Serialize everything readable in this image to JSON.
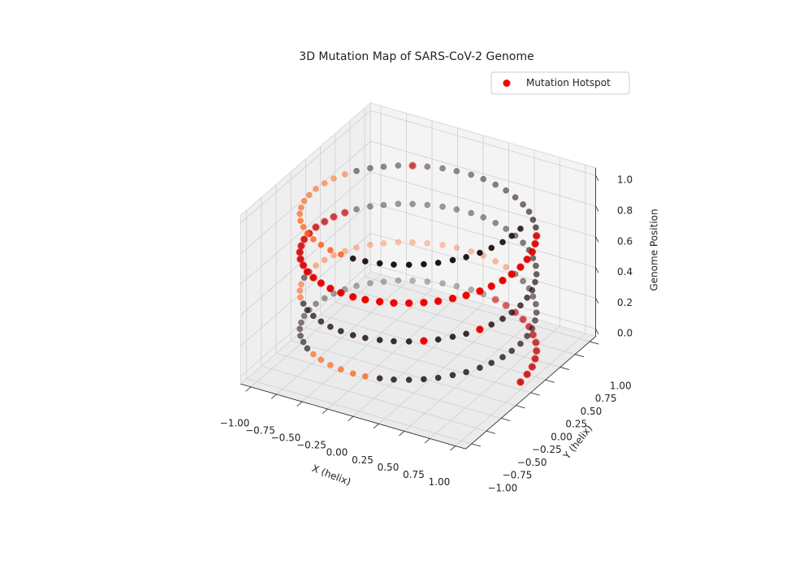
{
  "chart_data": {
    "type": "scatter3d",
    "title": "3D Mutation Map of SARS-CoV-2 Genome",
    "xlabel": "X (helix)",
    "ylabel": "Y (helix)",
    "zlabel": "Genome Position",
    "xlim": [
      -1.1,
      1.1
    ],
    "ylim": [
      -1.1,
      1.1
    ],
    "zlim": [
      -0.05,
      1.05
    ],
    "xticks": [
      {
        "value": -1,
        "label": "−1.00"
      },
      {
        "value": -0.75,
        "label": "−0.75"
      },
      {
        "value": -0.5,
        "label": "−0.50"
      },
      {
        "value": -0.25,
        "label": "−0.25"
      },
      {
        "value": 0,
        "label": "0.00"
      },
      0.25,
      {
        "value": 0.5,
        "label": "0.50"
      },
      0.75,
      {
        "value": 1,
        "label": "1.00"
      }
    ],
    "yticks": [
      {
        "value": -1,
        "label": "−1.00"
      },
      {
        "value": -0.75,
        "label": "−0.75"
      },
      {
        "value": -0.5,
        "label": "−0.50"
      },
      {
        "value": -0.25,
        "label": "−0.25"
      },
      {
        "value": 0,
        "label": "0.00"
      },
      0.25,
      {
        "value": 0.5,
        "label": "0.50"
      },
      0.75,
      {
        "value": 1,
        "label": "1.00"
      }
    ],
    "zticks": [
      {
        "value": 0,
        "label": "0.0"
      },
      0.2,
      0.4,
      0.6,
      0.8,
      {
        "value": 1,
        "label": "1.0"
      }
    ],
    "grid": true,
    "legend": "upper right",
    "series": [
      {
        "x": [
          1,
          0.99,
          0.97,
          0.93,
          0.88,
          0.81,
          0.73,
          0.64,
          0.54,
          0.43,
          0.31,
          0.19,
          0.06,
          -0.06,
          -0.19,
          -0.31,
          -0.43,
          -0.54,
          -0.64,
          -0.73,
          -0.81,
          -0.88,
          -0.93,
          -0.97,
          -0.99,
          -1,
          -0.99,
          -0.97,
          -0.93,
          -0.88,
          -0.81,
          -0.73,
          -0.64,
          -0.54,
          -0.43,
          -0.31,
          -0.19,
          -0.06,
          0.06,
          0.19,
          0.31,
          0.43,
          0.54,
          0.64,
          0.73,
          0.81,
          0.88,
          0.93,
          0.97,
          0.99,
          1,
          0.99,
          0.97,
          0.93,
          0.88,
          0.81,
          0.73,
          0.64,
          0.54,
          0.43,
          0.31,
          0.19,
          0.06,
          -0.06,
          -0.19,
          -0.31,
          -0.43,
          -0.54,
          -0.64,
          -0.73,
          -0.81,
          -0.88,
          -0.93,
          -0.97,
          -0.99,
          -1,
          -0.99,
          -0.97,
          -0.93,
          -0.88,
          -0.81,
          -0.73,
          -0.64,
          -0.54,
          -0.43,
          -0.31,
          -0.19,
          -0.06,
          0.06,
          0.19,
          0.31,
          0.43,
          0.54,
          0.64,
          0.73,
          0.81,
          0.88,
          0.93,
          0.97,
          0.99,
          1,
          0.99,
          0.97,
          0.93,
          0.88,
          0.81,
          0.73,
          0.64,
          0.54,
          0.43,
          0.31,
          0.19,
          0.06,
          -0.06,
          -0.19,
          -0.31,
          -0.43,
          -0.54,
          -0.64,
          -0.73,
          -0.81,
          -0.88,
          -0.93,
          -0.97,
          -0.99,
          -1,
          -0.99,
          -0.97,
          -0.93,
          -0.88,
          -0.81,
          -0.73,
          -0.64,
          -0.54,
          -0.43,
          -0.31,
          -0.19,
          -0.06,
          0.06,
          0.19,
          0.31,
          0.43,
          0.54,
          0.64,
          0.73,
          0.81,
          0.88,
          0.93,
          0.97,
          0.99,
          1,
          0.99,
          0.97,
          0.93,
          0.88,
          0.81,
          0.73,
          0.64,
          0.54,
          0.43,
          0.31,
          0.19,
          0.06,
          -0.06,
          -0.19,
          -0.31,
          -0.43,
          -0.54,
          -0.64,
          -0.73,
          -0.81,
          -0.88,
          -0.93,
          -0.97,
          -0.99,
          -1,
          -0.99,
          -0.97,
          -0.93,
          -0.88,
          -0.81,
          -0.73,
          -0.64,
          -0.54,
          -0.43,
          -0.31,
          -0.19,
          -0.06,
          0.06,
          0.19,
          0.31,
          0.43,
          0.54,
          0.64,
          0.73,
          0.81,
          0.88,
          0.93,
          0.97,
          0.99,
          1
        ],
        "y": [
          0,
          0.13,
          0.25,
          0.37,
          0.48,
          0.59,
          0.68,
          0.77,
          0.84,
          0.9,
          0.95,
          0.98,
          1,
          1,
          0.98,
          0.95,
          0.9,
          0.84,
          0.77,
          0.68,
          0.59,
          0.48,
          0.37,
          0.25,
          0.13,
          0,
          -0.13,
          -0.25,
          -0.37,
          -0.48,
          -0.59,
          -0.68,
          -0.77,
          -0.84,
          -0.9,
          -0.95,
          -0.98,
          -1,
          -1,
          -0.98,
          -0.95,
          -0.9,
          -0.84,
          -0.77,
          -0.68,
          -0.59,
          -0.48,
          -0.37,
          -0.25,
          -0.13,
          0,
          0.13,
          0.25,
          0.37,
          0.48,
          0.59,
          0.68,
          0.77,
          0.84,
          0.9,
          0.95,
          0.98,
          1,
          1,
          0.98,
          0.95,
          0.9,
          0.84,
          0.77,
          0.68,
          0.59,
          0.48,
          0.37,
          0.25,
          0.13,
          0,
          -0.13,
          -0.25,
          -0.37,
          -0.48,
          -0.59,
          -0.68,
          -0.77,
          -0.84,
          -0.9,
          -0.95,
          -0.98,
          -1,
          -1,
          -0.98,
          -0.95,
          -0.9,
          -0.84,
          -0.77,
          -0.68,
          -0.59,
          -0.48,
          -0.37,
          -0.25,
          -0.13,
          0,
          0.13,
          0.25,
          0.37,
          0.48,
          0.59,
          0.68,
          0.77,
          0.84,
          0.9,
          0.95,
          0.98,
          1,
          1,
          0.98,
          0.95,
          0.9,
          0.84,
          0.77,
          0.68,
          0.59,
          0.48,
          0.37,
          0.25,
          0.13,
          0,
          -0.13,
          -0.25,
          -0.37,
          -0.48,
          -0.59,
          -0.68,
          -0.77,
          -0.84,
          -0.9,
          -0.95,
          -0.98,
          -1,
          -1,
          -0.98,
          -0.95,
          -0.9,
          -0.84,
          -0.77,
          -0.68,
          -0.59,
          -0.48,
          -0.37,
          -0.25,
          -0.13,
          0,
          0.13,
          0.25,
          0.37,
          0.48,
          0.59,
          0.68,
          0.77,
          0.84,
          0.9,
          0.95,
          0.98,
          1,
          1,
          0.98,
          0.95,
          0.9,
          0.84,
          0.77,
          0.68,
          0.59,
          0.48,
          0.37,
          0.25,
          0.13,
          0,
          -0.13,
          -0.25,
          -0.37,
          -0.48,
          -0.59,
          -0.68,
          -0.77,
          -0.84,
          -0.9,
          -0.95,
          -0.98,
          -1,
          -1,
          -0.98,
          -0.95,
          -0.9,
          -0.84,
          -0.77,
          -0.68,
          -0.59,
          -0.48,
          -0.37,
          -0.25,
          -0.13,
          0
        ],
        "z": [
          0,
          0.005,
          0.01,
          0.015,
          0.02,
          0.025,
          0.03,
          0.035,
          0.04,
          0.045,
          0.05,
          0.055,
          0.06,
          0.065,
          0.07,
          0.075,
          0.08,
          0.085,
          0.09,
          0.095,
          0.1,
          0.105,
          0.11,
          0.115,
          0.12,
          0.125,
          0.13,
          0.135,
          0.14,
          0.145,
          0.15,
          0.155,
          0.16,
          0.165,
          0.17,
          0.175,
          0.18,
          0.185,
          0.19,
          0.195,
          0.2,
          0.205,
          0.21,
          0.215,
          0.22,
          0.225,
          0.23,
          0.235,
          0.24,
          0.245,
          0.25,
          0.255,
          0.26,
          0.265,
          0.27,
          0.275,
          0.28,
          0.285,
          0.29,
          0.295,
          0.3,
          0.305,
          0.31,
          0.315,
          0.32,
          0.325,
          0.33,
          0.335,
          0.34,
          0.345,
          0.35,
          0.355,
          0.36,
          0.365,
          0.37,
          0.375,
          0.38,
          0.385,
          0.39,
          0.395,
          0.4,
          0.405,
          0.41,
          0.415,
          0.42,
          0.425,
          0.43,
          0.435,
          0.44,
          0.445,
          0.45,
          0.455,
          0.46,
          0.465,
          0.47,
          0.475,
          0.48,
          0.485,
          0.49,
          0.495,
          0.5,
          0.505,
          0.51,
          0.515,
          0.52,
          0.525,
          0.53,
          0.535,
          0.54,
          0.545,
          0.55,
          0.555,
          0.56,
          0.565,
          0.57,
          0.575,
          0.58,
          0.585,
          0.59,
          0.595,
          0.6,
          0.605,
          0.61,
          0.615,
          0.62,
          0.625,
          0.63,
          0.635,
          0.64,
          0.645,
          0.65,
          0.655,
          0.66,
          0.665,
          0.67,
          0.675,
          0.68,
          0.685,
          0.69,
          0.695,
          0.7,
          0.705,
          0.71,
          0.715,
          0.72,
          0.725,
          0.73,
          0.735,
          0.74,
          0.745,
          0.75,
          0.755,
          0.76,
          0.765,
          0.77,
          0.775,
          0.78,
          0.785,
          0.79,
          0.795,
          0.8,
          0.805,
          0.81,
          0.815,
          0.82,
          0.825,
          0.83,
          0.835,
          0.84,
          0.845,
          0.85,
          0.855,
          0.86,
          0.865,
          0.87,
          0.875,
          0.88,
          0.885,
          0.89,
          0.895,
          0.9,
          0.905,
          0.91,
          0.915,
          0.92,
          0.925,
          0.93,
          0.935,
          0.94,
          0.945,
          0.95,
          0.955,
          0.96,
          0.965,
          0.97,
          0.975,
          0.98,
          0.985,
          0.99,
          0.995,
          1
        ],
        "colors": [
          "#221111",
          "#221111",
          "#221111",
          "#221111",
          "#221111",
          "#221111",
          "#221111",
          "#221111",
          "#221111",
          "#221111",
          "#221111",
          "#221111",
          "#221111",
          "#221111",
          "#221111",
          "#221111",
          "#221111",
          "#221111",
          "#221111",
          "#221111",
          "#221111",
          "#221111",
          "#221111",
          "#221111",
          "#221111",
          "#221111",
          "#221111",
          "#221111",
          "#221111",
          "#221111",
          "#221111",
          "#221111",
          "#221111",
          "#ff6622",
          "#ff6622",
          "#ff6622",
          "#ff6622",
          "#ff6622",
          "#ff6622",
          "#221111",
          "#221111",
          "#221111",
          "#221111",
          "#221111",
          "#221111",
          "#221111",
          "#221111",
          "#221111",
          "#221111",
          "#221111",
          "#221111",
          "#221111",
          "#221111",
          "#221111",
          "#221111",
          "#221111",
          "#221111",
          "#221111",
          "#221111",
          "#221111",
          "#ff6622",
          "#ff6622",
          "#ff6622",
          "#ff6622",
          "#ff6622",
          "#ff6622",
          "#ff6622",
          "#ff6622",
          "#ff6622",
          "#ff6622",
          "#ff6622",
          "#ff6622",
          "#ff6622",
          "#ff6622",
          "#ff6622",
          "#ff6622",
          "#221111",
          "#221111",
          "#ff6622",
          "#ff6622",
          "#ff6622",
          "#221111",
          "#221111",
          "#221111",
          "#221111",
          "#221111",
          "#221111",
          "#221111",
          "#221111",
          "#221111",
          "#221111",
          "#221111",
          "#221111",
          "#221111",
          "#221111",
          "#221111",
          "#221111",
          "#221111",
          "#221111",
          "#221111",
          "#221111",
          "#221111",
          "#221111",
          "#221111",
          "#221111",
          "#221111",
          "#221111",
          "#221111",
          "#221111",
          "#221111",
          "#221111",
          "#221111",
          "#221111",
          "#221111",
          "#221111",
          "#221111",
          "#221111",
          "#221111",
          "#221111",
          "#221111",
          "#221111",
          "#221111",
          "#221111",
          "#221111",
          "#221111",
          "#221111",
          "#221111",
          "#221111",
          "#221111",
          "#221111",
          "#221111",
          "#221111",
          "#221111",
          "#221111",
          "#221111",
          "#221111",
          "#221111",
          "#221111",
          "#221111",
          "#221111",
          "#221111",
          "#221111",
          "#221111",
          "#221111",
          "#221111",
          "#221111",
          "#221111",
          "#221111",
          "#221111",
          "#221111",
          "#221111",
          "#221111",
          "#221111",
          "#221111",
          "#221111",
          "#221111",
          "#221111",
          "#221111",
          "#221111",
          "#221111",
          "#221111",
          "#221111",
          "#221111",
          "#221111",
          "#221111",
          "#221111",
          "#221111",
          "#221111",
          "#221111",
          "#221111",
          "#221111",
          "#221111",
          "#ff6622",
          "#ff6622",
          "#ff6622",
          "#ff6622",
          "#ff6622",
          "#ff6622",
          "#ff6622",
          "#ff6622",
          "#ff6622",
          "#ff6622",
          "#ff6622",
          "#ff6622",
          "#ff6622",
          "#ff6622",
          "#ff6622",
          "#221111",
          "#221111",
          "#221111",
          "#221111",
          "#221111",
          "#221111",
          "#221111",
          "#221111",
          "#221111",
          "#221111",
          "#221111",
          "#221111",
          "#221111",
          "#221111"
        ]
      },
      {
        "name": "Mutation Hotspot",
        "color": "#ff0000",
        "x": [
          1,
          0.99,
          0.97,
          0.93,
          0.88,
          0.81,
          0.73,
          0.64,
          0.54,
          0.43,
          0.31,
          0.19,
          0.54,
          0.88,
          -0.93,
          -0.97,
          -0.99,
          -1,
          -0.99,
          -0.97,
          -0.93,
          -0.88,
          -0.81,
          -0.73,
          -0.64,
          -0.54,
          -0.43,
          -0.31,
          -0.19,
          -0.06,
          0.06,
          0.19,
          0.31,
          0.43,
          0.54,
          0.64,
          0.73,
          0.81,
          0.88,
          0.93,
          0.97,
          0.99,
          1,
          0.99,
          0.97,
          0.93,
          0.88,
          -0.54
        ],
        "y": [
          0,
          0.13,
          0.25,
          0.37,
          0.48,
          0.59,
          0.68,
          0.77,
          0.84,
          0.9,
          0.95,
          0.98,
          -0.84,
          -0.48,
          0.37,
          0.25,
          0.13,
          0,
          -0.13,
          -0.25,
          -0.37,
          -0.48,
          -0.59,
          -0.68,
          -0.77,
          -0.84,
          -0.9,
          -0.95,
          -0.98,
          -1,
          -1,
          -0.98,
          -0.95,
          -0.9,
          -0.84,
          -0.77,
          -0.68,
          -0.59,
          -0.48,
          -0.37,
          -0.25,
          -0.13,
          0,
          0.13,
          0.25,
          0.37,
          0.48,
          0.84
        ],
        "z": [
          0,
          0.005,
          0.01,
          0.015,
          0.02,
          0.025,
          0.03,
          0.035,
          0.04,
          0.045,
          0.05,
          0.055,
          0.46,
          0.48,
          0.61,
          0.615,
          0.62,
          0.625,
          0.63,
          0.635,
          0.64,
          0.645,
          0.65,
          0.655,
          0.66,
          0.665,
          0.67,
          0.675,
          0.68,
          0.685,
          0.69,
          0.695,
          0.7,
          0.705,
          0.71,
          0.715,
          0.72,
          0.725,
          0.73,
          0.735,
          0.74,
          0.745,
          0.75,
          0.755,
          0.76,
          0.765,
          0.77,
          0.835
        ]
      }
    ]
  }
}
